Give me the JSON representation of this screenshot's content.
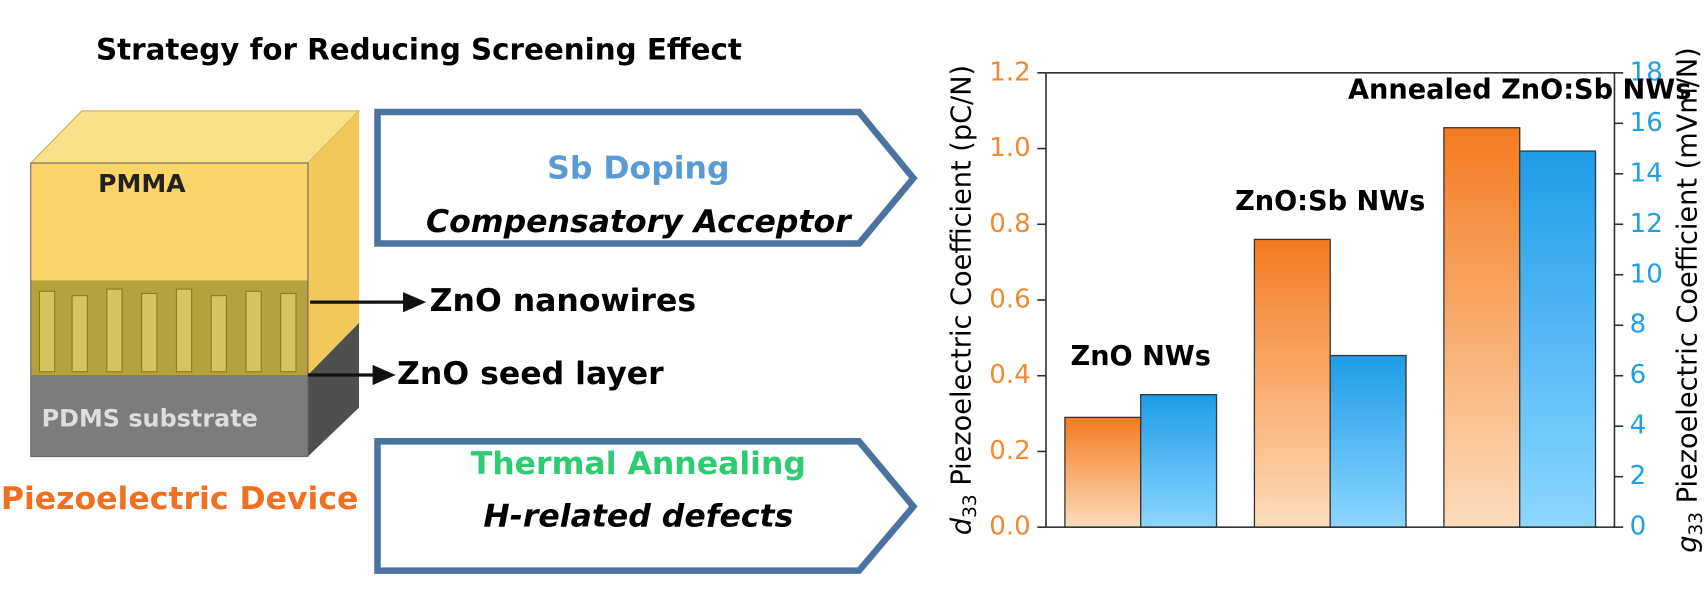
{
  "diagram": {
    "title": "Strategy for Reducing Screening Effect",
    "layers": [
      "PMMA",
      "PDMS substrate"
    ],
    "pointers": [
      "ZnO nanowires",
      "ZnO seed layer"
    ],
    "device": "Piezoelectric Device",
    "strategies": [
      {
        "name": "Sb Doping",
        "detail": "Compensatory Acceptor"
      },
      {
        "name": "Thermal Annealing",
        "detail": "H-related defects"
      }
    ]
  },
  "chart_data": {
    "type": "bar",
    "categories": [
      "ZnO NWs",
      "ZnO:Sb NWs",
      "Annealed ZnO:Sb NWs"
    ],
    "series": [
      {
        "name": "d33",
        "color": "#f47b20",
        "values": [
          0.29,
          0.76,
          1.055
        ]
      },
      {
        "name": "g33",
        "color": "#1e9ce8",
        "values": [
          5.25,
          6.8,
          14.9
        ],
        "axis": "y2"
      }
    ],
    "ylabel_symbol": "d",
    "ylabel_subscript": "33",
    "ylabel": "Piezoelectric Coefficient (pC/N)",
    "y2label_symbol": "g",
    "y2label_subscript": "33",
    "y2label": "Piezoelectric Coefficient (mVm/N)",
    "ylim": [
      0,
      1.2
    ],
    "yticks": [
      {
        "value": 0,
        "label": "0.0"
      },
      0.2,
      0.4,
      0.6,
      0.8,
      {
        "value": 1,
        "label": "1.0"
      },
      1.2
    ],
    "y2lim": [
      0,
      18
    ],
    "y2ticks": [
      0,
      2,
      4,
      6,
      8,
      10,
      12,
      14,
      16,
      18
    ]
  }
}
